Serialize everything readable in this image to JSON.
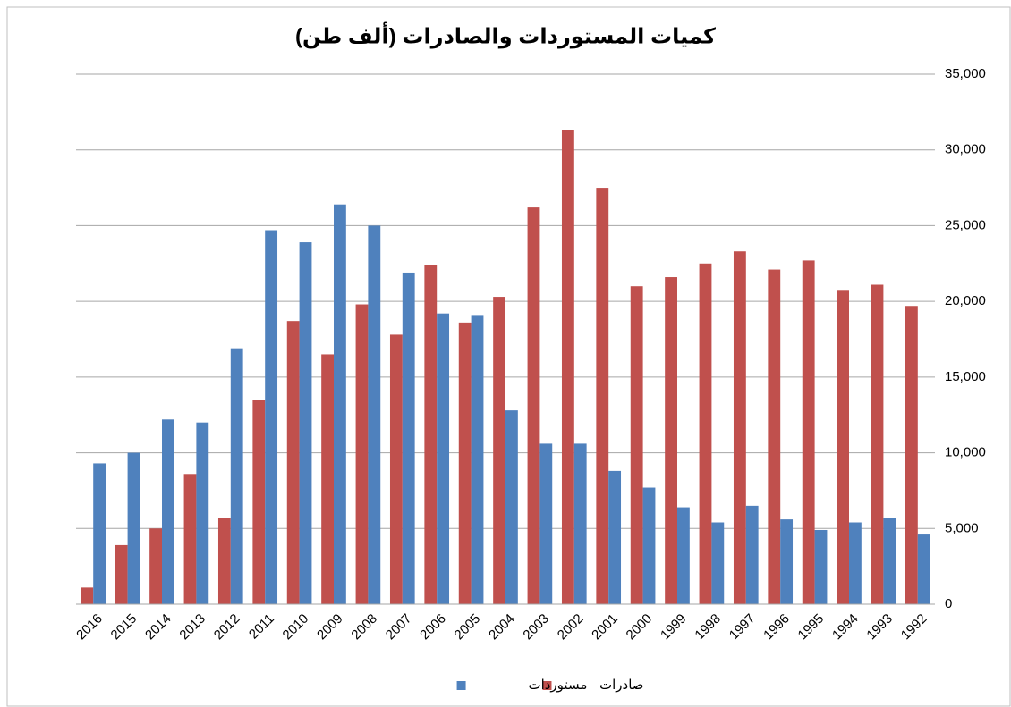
{
  "chart_data": {
    "type": "bar",
    "title": "كميات المستوردات والصادرات (ألف طن)",
    "categories": [
      "2016",
      "2015",
      "2014",
      "2013",
      "2012",
      "2011",
      "2010",
      "2009",
      "2008",
      "2007",
      "2006",
      "2005",
      "2004",
      "2003",
      "2002",
      "2001",
      "2000",
      "1999",
      "1998",
      "1997",
      "1996",
      "1995",
      "1994",
      "1993",
      "1992"
    ],
    "series": [
      {
        "name": "صادرات",
        "color": "#c0504d",
        "values": [
          1100,
          3900,
          5000,
          8600,
          5700,
          13500,
          18700,
          16500,
          19800,
          17800,
          22400,
          18600,
          20300,
          26200,
          31300,
          27500,
          21000,
          21600,
          22500,
          23300,
          22100,
          22700,
          20700,
          21100,
          19700
        ]
      },
      {
        "name": "مستوردات",
        "color": "#4f81bd",
        "values": [
          9300,
          10000,
          12200,
          12000,
          16900,
          24700,
          23900,
          26400,
          25000,
          21900,
          19200,
          19100,
          12800,
          10600,
          10600,
          8800,
          7700,
          6400,
          5400,
          6500,
          5600,
          4900,
          5400,
          5700,
          4600
        ]
      }
    ],
    "ylim": [
      0,
      35000
    ],
    "yticks": [
      0,
      {
        "value": 5000,
        "label": "5,000"
      },
      {
        "value": 10000,
        "label": "10,000"
      },
      {
        "value": 15000,
        "label": "15,000"
      },
      {
        "value": 20000,
        "label": "20,000"
      },
      {
        "value": 25000,
        "label": "25,000"
      },
      {
        "value": 30000,
        "label": "30,000"
      },
      {
        "value": 35000,
        "label": "35,000"
      }
    ],
    "grid": true,
    "legend": "bottom"
  }
}
